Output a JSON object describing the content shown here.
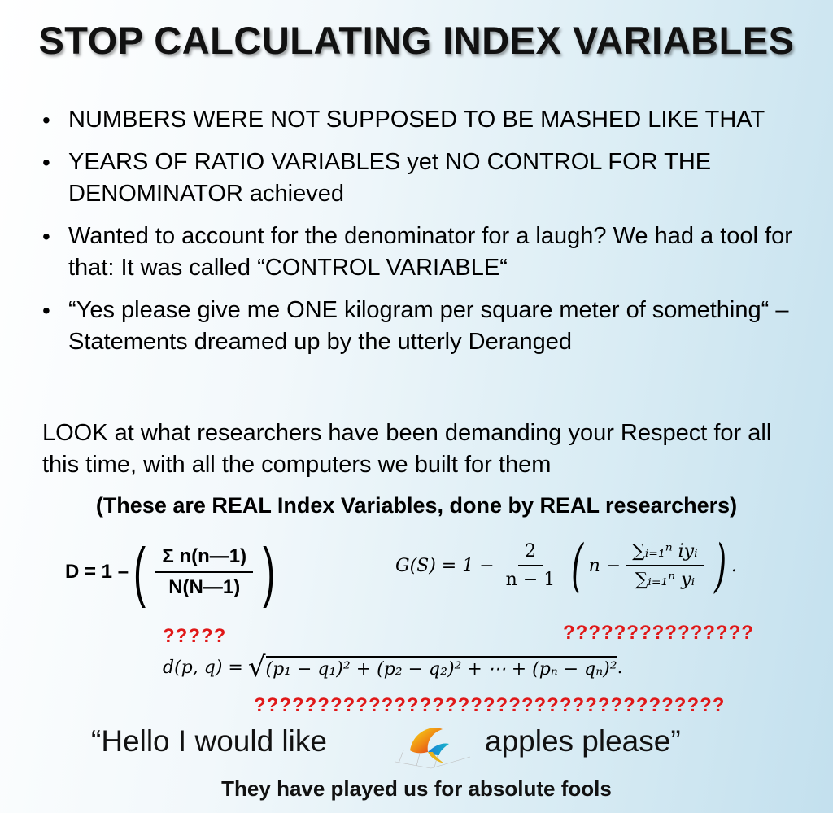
{
  "title": "STOP CALCULATING INDEX VARIABLES",
  "bullets": [
    "NUMBERS WERE NOT SUPPOSED TO BE MASHED LIKE THAT",
    "YEARS OF RATIO VARIABLES yet NO CONTROL FOR THE DENOMINATOR achieved",
    "Wanted to account for the denominator for a laugh? We had a tool for that: It was called “CONTROL VARIABLE“",
    "“Yes please give me ONE kilogram per square meter of something“ – Statements dreamed up by the utterly Deranged"
  ],
  "paragraph": "LOOK at what researchers have been demanding your Respect for all this time, with all the computers we built for them",
  "subtitle": "(These are REAL Index Variables, done by REAL researchers)",
  "formula_1": {
    "lhs": "D = 1 –",
    "numerator": "Σ n(n—1)",
    "denominator": "N(N—1)"
  },
  "formula_2": {
    "lhs": "G(S) = 1 −",
    "coef_num": "2",
    "coef_den": "n − 1",
    "term": "n −",
    "num": "∑ᵢ₌₁ⁿ iyᵢ",
    "den": "∑ᵢ₌₁ⁿ yᵢ",
    "end": "."
  },
  "formula_3": {
    "lhs": "d(p, q) =",
    "radicand": "(p₁ − q₁)² + (p₂ − q₂)² + ⋯ + (pₙ − qₙ)²",
    "end": "."
  },
  "question_marks": {
    "q1": "?????",
    "q2": "???????????????",
    "q3": "?????????????????????????????????????"
  },
  "hello_line": {
    "part1": "“Hello I would like",
    "part2": "apples please”"
  },
  "closing": "They have played us for absolute fools",
  "colors": {
    "accent_red": "#e01818",
    "background_end": "#c3e0ee"
  },
  "icons": {
    "logo": "3d-surface-plot-icon"
  }
}
